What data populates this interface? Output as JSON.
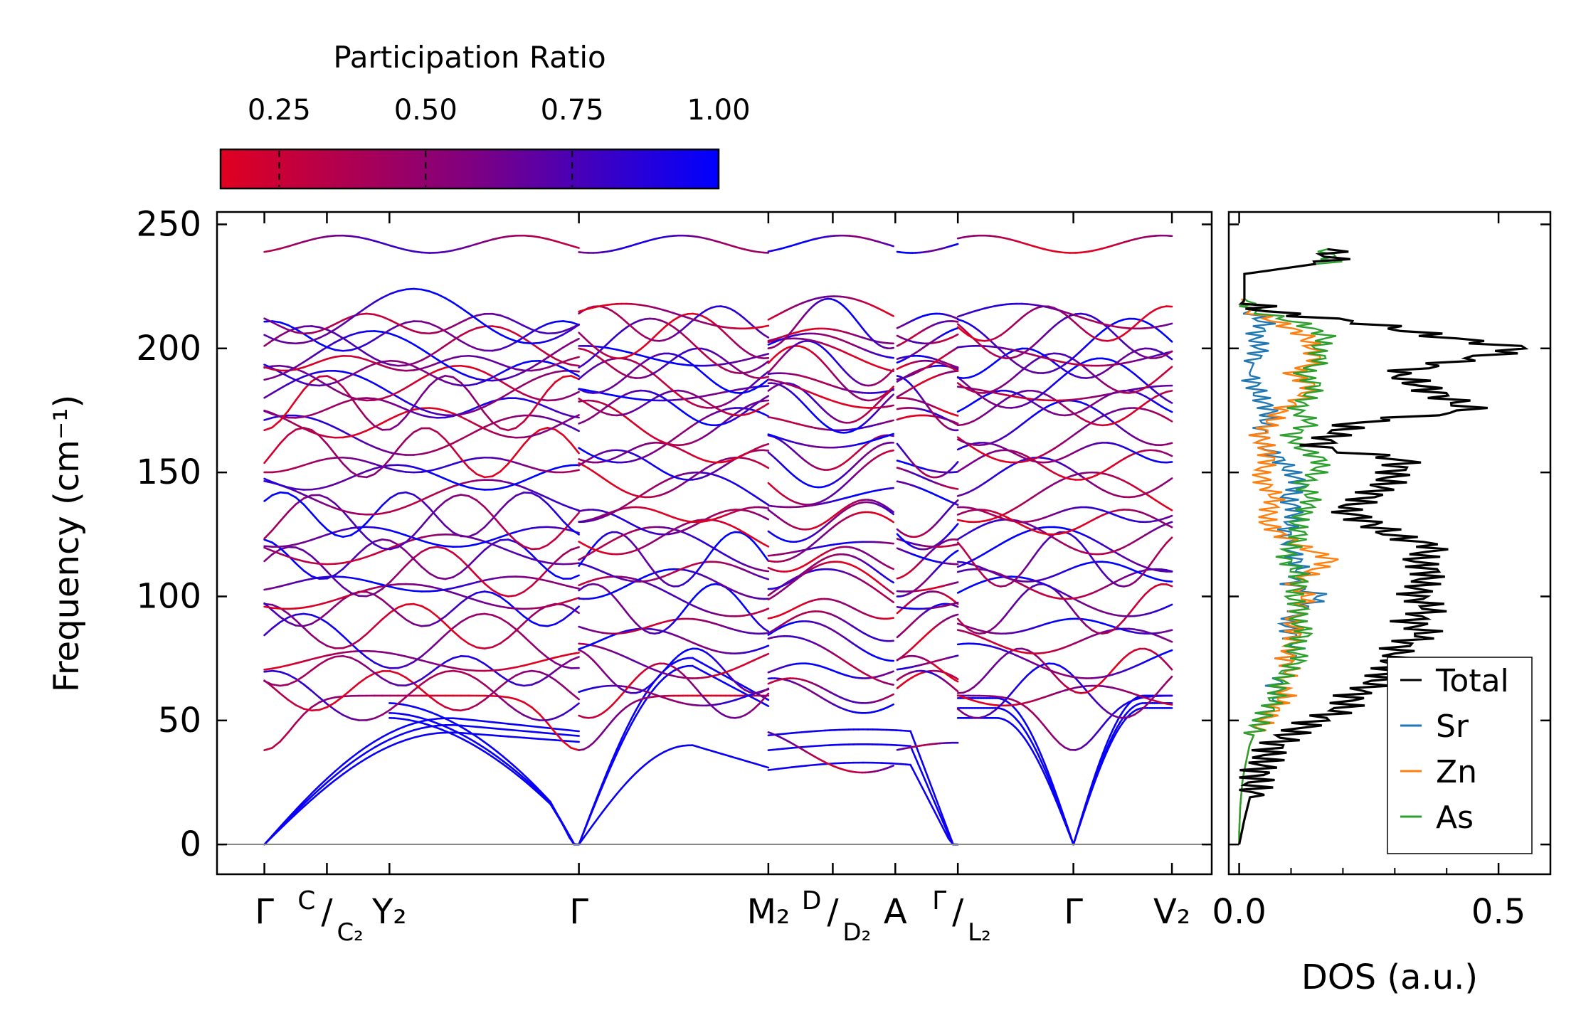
{
  "colorbar": {
    "title": "Participation Ratio",
    "ticks": [
      "0.25",
      "0.50",
      "0.75",
      "1.00"
    ],
    "tick_values": [
      0.25,
      0.5,
      0.75,
      1.0
    ],
    "range": [
      0.15,
      1.0
    ],
    "colors": {
      "low": "#e00020",
      "mid": "#800080",
      "high": "#0000ff"
    }
  },
  "chart_data": [
    {
      "type": "line",
      "name": "phonon-dispersion",
      "ylabel": "Frequency (cm⁻¹)",
      "ylim": [
        -12,
        255
      ],
      "yticks": [
        0,
        50,
        100,
        150,
        200,
        250
      ],
      "ytick_labels": [
        "0",
        "50",
        "100",
        "150",
        "200",
        "250"
      ],
      "xlim": [
        -0.25,
        5.0
      ],
      "x_tick_positions": [
        0,
        0.33,
        0.66,
        1.66,
        2.66,
        3.0,
        3.33,
        3.66,
        4.27,
        4.79
      ],
      "x_labels": [
        {
          "pos": 0,
          "main": "Γ",
          "pre": "",
          "sub": ""
        },
        {
          "pos": 0.33,
          "main": "/",
          "pre": "C",
          "sub": "C₂"
        },
        {
          "pos": 0.66,
          "main": "Y₂",
          "pre": "",
          "sub": ""
        },
        {
          "pos": 1.66,
          "main": "Γ",
          "pre": "",
          "sub": ""
        },
        {
          "pos": 2.66,
          "main": "M₂",
          "pre": "",
          "sub": ""
        },
        {
          "pos": 3.0,
          "main": "/",
          "pre": "D",
          "sub": "D₂"
        },
        {
          "pos": 3.33,
          "main": "A",
          "pre": "",
          "sub": ""
        },
        {
          "pos": 3.66,
          "main": "/",
          "pre": "Γ",
          "sub": "L₂"
        },
        {
          "pos": 4.27,
          "main": "Γ",
          "pre": "",
          "sub": ""
        },
        {
          "pos": 4.79,
          "main": "V₂",
          "pre": "",
          "sub": ""
        }
      ],
      "segments": [
        [
          0,
          1.66
        ],
        [
          1.66,
          2.66
        ],
        [
          2.66,
          3.32
        ],
        [
          3.34,
          3.66
        ],
        [
          3.66,
          4.79
        ]
      ],
      "gamma_points": [
        0,
        1.66,
        4.27
      ],
      "acoustic_branches": {
        "segment1": [
          [
            59,
            55,
            50
          ],
          [
            55,
            51,
            49
          ],
          [
            51,
            48,
            47
          ]
        ],
        "segment2": [
          [
            51,
            48,
            47
          ],
          [
            53,
            50,
            45
          ],
          [
            57,
            48,
            25
          ]
        ],
        "segment5": [
          [
            59,
            55,
            60
          ],
          [
            55,
            51,
            57
          ],
          [
            51,
            48,
            55
          ]
        ]
      },
      "optical_mode_frequencies": [
        38,
        60,
        62,
        70,
        74,
        82,
        88,
        95,
        100,
        105,
        110,
        115,
        119,
        124,
        130,
        133,
        140,
        148,
        153,
        158,
        165,
        170,
        176,
        178,
        182,
        186,
        190,
        194,
        197,
        201,
        205,
        210,
        213,
        242
      ]
    },
    {
      "type": "line",
      "name": "density-of-states",
      "xlabel": "DOS (a.u.)",
      "xlim": [
        -0.02,
        0.6
      ],
      "ylim": [
        -12,
        255
      ],
      "xticks": [
        0.0,
        0.5
      ],
      "xtick_labels": [
        "0.0",
        "0.5"
      ],
      "legend": {
        "location": "lower-right",
        "entries": [
          "Total",
          "Sr",
          "Zn",
          "As"
        ]
      },
      "series": [
        {
          "name": "Total",
          "color": "#000000",
          "y": [
            0,
            5,
            10,
            15,
            20,
            25,
            30,
            35,
            40,
            45,
            50,
            55,
            60,
            65,
            70,
            75,
            80,
            85,
            90,
            95,
            100,
            105,
            110,
            115,
            120,
            125,
            130,
            135,
            140,
            145,
            150,
            155,
            160,
            165,
            170,
            175,
            180,
            185,
            190,
            195,
            200,
            205,
            210,
            215,
            220,
            225,
            230,
            235,
            240
          ],
          "values": [
            0,
            0.005,
            0.01,
            0.016,
            0.022,
            0.03,
            0.04,
            0.05,
            0.07,
            0.1,
            0.15,
            0.2,
            0.22,
            0.26,
            0.29,
            0.3,
            0.31,
            0.36,
            0.33,
            0.37,
            0.34,
            0.35,
            0.37,
            0.34,
            0.38,
            0.29,
            0.25,
            0.2,
            0.25,
            0.28,
            0.3,
            0.32,
            0.15,
            0.18,
            0.22,
            0.45,
            0.4,
            0.35,
            0.3,
            0.42,
            0.55,
            0.38,
            0.25,
            0.05,
            0.01,
            0.01,
            0.01,
            0.18,
            0.17
          ]
        },
        {
          "name": "Sr",
          "color": "#1f77b4",
          "y": [
            0,
            5,
            10,
            15,
            20,
            25,
            30,
            35,
            40,
            45,
            50,
            55,
            60,
            65,
            70,
            75,
            80,
            85,
            90,
            95,
            100,
            105,
            110,
            115,
            120,
            125,
            130,
            135,
            140,
            145,
            150,
            155,
            160,
            165,
            170,
            175,
            180,
            185,
            190,
            195,
            200,
            205,
            210,
            215,
            220
          ],
          "values": [
            0,
            0,
            0.001,
            0.002,
            0.004,
            0.006,
            0.01,
            0.015,
            0.02,
            0.03,
            0.04,
            0.06,
            0.08,
            0.07,
            0.1,
            0.09,
            0.11,
            0.1,
            0.09,
            0.12,
            0.16,
            0.1,
            0.12,
            0.11,
            0.1,
            0.09,
            0.1,
            0.11,
            0.09,
            0.12,
            0.1,
            0.08,
            0.05,
            0.04,
            0.05,
            0.06,
            0.04,
            0.03,
            0.02,
            0.03,
            0.04,
            0.03,
            0.05,
            0.02,
            0.005
          ]
        },
        {
          "name": "Zn",
          "color": "#ff7f0e",
          "y": [
            0,
            5,
            10,
            15,
            20,
            25,
            30,
            35,
            40,
            45,
            50,
            55,
            60,
            65,
            70,
            75,
            80,
            85,
            90,
            95,
            100,
            105,
            110,
            115,
            120,
            125,
            130,
            135,
            140,
            145,
            150,
            155,
            160,
            165,
            170,
            175,
            180,
            185,
            190,
            195,
            200,
            205,
            210,
            215,
            220
          ],
          "values": [
            0,
            0,
            0.001,
            0.002,
            0.004,
            0.006,
            0.01,
            0.015,
            0.02,
            0.03,
            0.05,
            0.07,
            0.09,
            0.08,
            0.1,
            0.09,
            0.1,
            0.11,
            0.1,
            0.12,
            0.13,
            0.11,
            0.14,
            0.18,
            0.12,
            0.08,
            0.05,
            0.06,
            0.07,
            0.05,
            0.04,
            0.06,
            0.05,
            0.04,
            0.06,
            0.08,
            0.12,
            0.14,
            0.1,
            0.15,
            0.14,
            0.13,
            0.08,
            0.02,
            0.005
          ]
        },
        {
          "name": "As",
          "color": "#2ca02c",
          "y": [
            0,
            5,
            10,
            15,
            20,
            25,
            30,
            35,
            40,
            45,
            50,
            55,
            60,
            65,
            70,
            75,
            80,
            85,
            90,
            95,
            100,
            105,
            110,
            115,
            120,
            125,
            130,
            135,
            140,
            145,
            150,
            155,
            160,
            165,
            170,
            175,
            180,
            185,
            190,
            195,
            200,
            205,
            210,
            215,
            220,
            225,
            230,
            235,
            240
          ],
          "values": [
            0,
            0,
            0.001,
            0.002,
            0.004,
            0.006,
            0.01,
            0.015,
            0.02,
            0.03,
            0.04,
            0.06,
            0.07,
            0.08,
            0.09,
            0.12,
            0.1,
            0.13,
            0.11,
            0.12,
            0.1,
            0.12,
            0.11,
            0.09,
            0.1,
            0.12,
            0.11,
            0.13,
            0.14,
            0.12,
            0.15,
            0.16,
            0.12,
            0.1,
            0.14,
            0.11,
            0.13,
            0.15,
            0.12,
            0.16,
            0.15,
            0.17,
            0.12,
            0.03,
            0.01,
            0.01,
            0.01,
            0.18,
            0.17
          ]
        }
      ]
    }
  ]
}
